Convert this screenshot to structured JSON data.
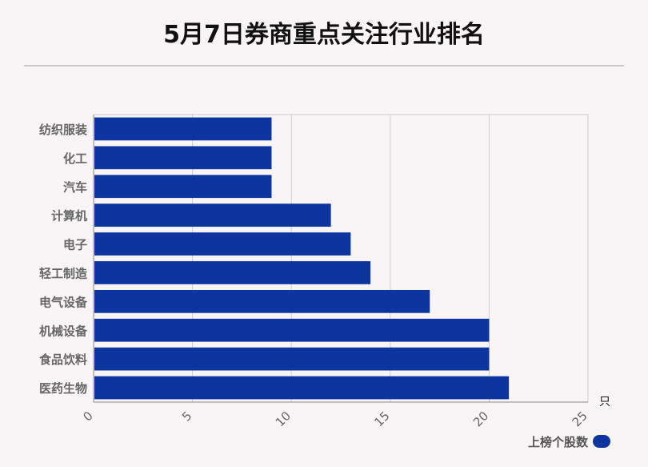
{
  "title": "5月7日券商重点关注行业排名",
  "colors": {
    "bar": "#0d35a0",
    "grid": "#cfcccf",
    "axis": "#888888"
  },
  "chart_data": {
    "type": "bar",
    "orientation": "horizontal",
    "categories": [
      "纺织服装",
      "化工",
      "汽车",
      "计算机",
      "电子",
      "轻工制造",
      "电气设备",
      "机械设备",
      "食品饮料",
      "医药生物"
    ],
    "series": [
      {
        "name": "上榜个股数",
        "values": [
          9,
          9,
          9,
          12,
          13,
          14,
          17,
          20,
          20,
          21
        ]
      }
    ],
    "xlim": [
      0,
      25
    ],
    "xticks": [
      "0",
      "5",
      "10",
      "15",
      "20",
      "25"
    ],
    "xunit": "只",
    "grid": true,
    "legend": "bottom-right"
  }
}
